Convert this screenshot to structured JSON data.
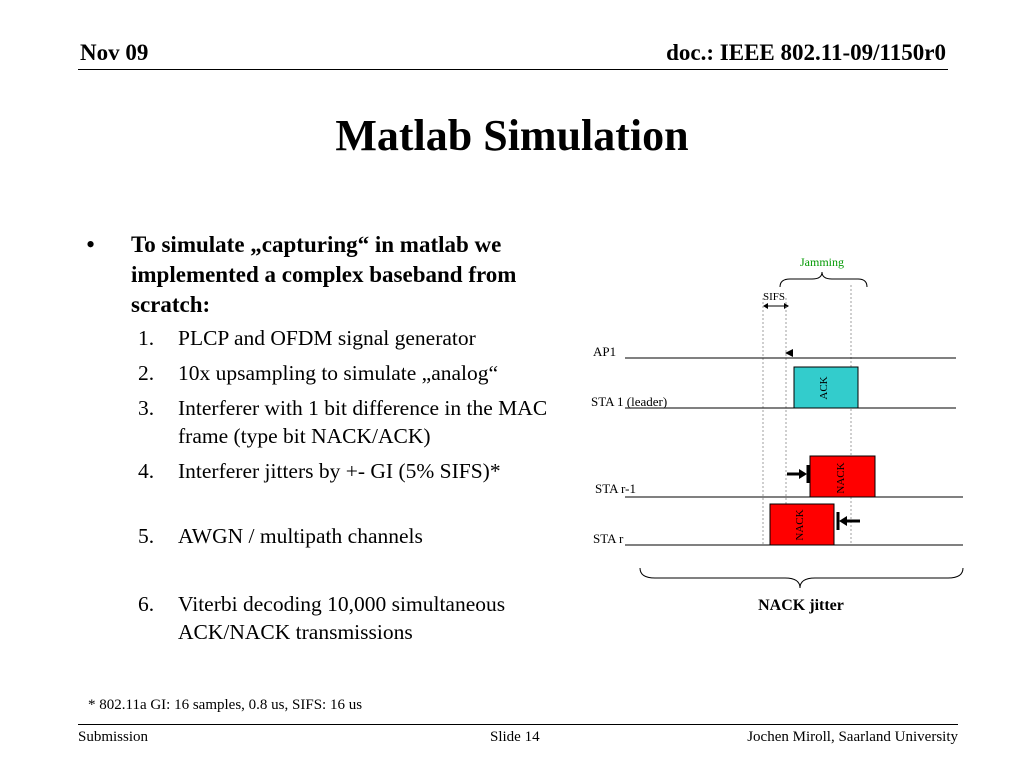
{
  "header": {
    "date": "Nov 09",
    "doc": "doc.: IEEE 802.11-09/1150r0"
  },
  "title": "Matlab Simulation",
  "bullet": {
    "symbol": "•",
    "text": "To simulate „capturing“ in matlab we implemented a complex baseband from scratch:"
  },
  "list": [
    {
      "num": "1.",
      "text": "PLCP and OFDM signal generator"
    },
    {
      "num": "2.",
      "text": "10x upsampling to simulate „analog“"
    },
    {
      "num": "3.",
      "text": "Interferer with 1 bit difference in the MAC frame (type bit NACK/ACK)"
    },
    {
      "num": "4.",
      "text": "Interferer jitters by +- GI (5% SIFS)*"
    },
    {
      "num": "5.",
      "text": "AWGN / multipath channels"
    },
    {
      "num": "6.",
      "text": "Viterbi decoding 10,000 simultaneous ACK/NACK transmissions"
    }
  ],
  "diagram": {
    "jamming": "Jamming",
    "sifs": "SIFS",
    "rows": {
      "ap1": "AP1",
      "sta1": "STA 1 (leader)",
      "star1": "STA r-1",
      "star": "STA r"
    },
    "ack": "ACK",
    "nack1": "NACK",
    "nack2": "NACK",
    "caption": "NACK jitter",
    "colors": {
      "ack": "#33CCCC",
      "nack": "#FF0000",
      "jamming": "#009900"
    }
  },
  "footnote": "* 802.11a GI: 16 samples, 0.8 us, SIFS: 16 us",
  "footer": {
    "left": "Submission",
    "center": "Slide 14",
    "right": "Jochen Miroll, Saarland University"
  }
}
